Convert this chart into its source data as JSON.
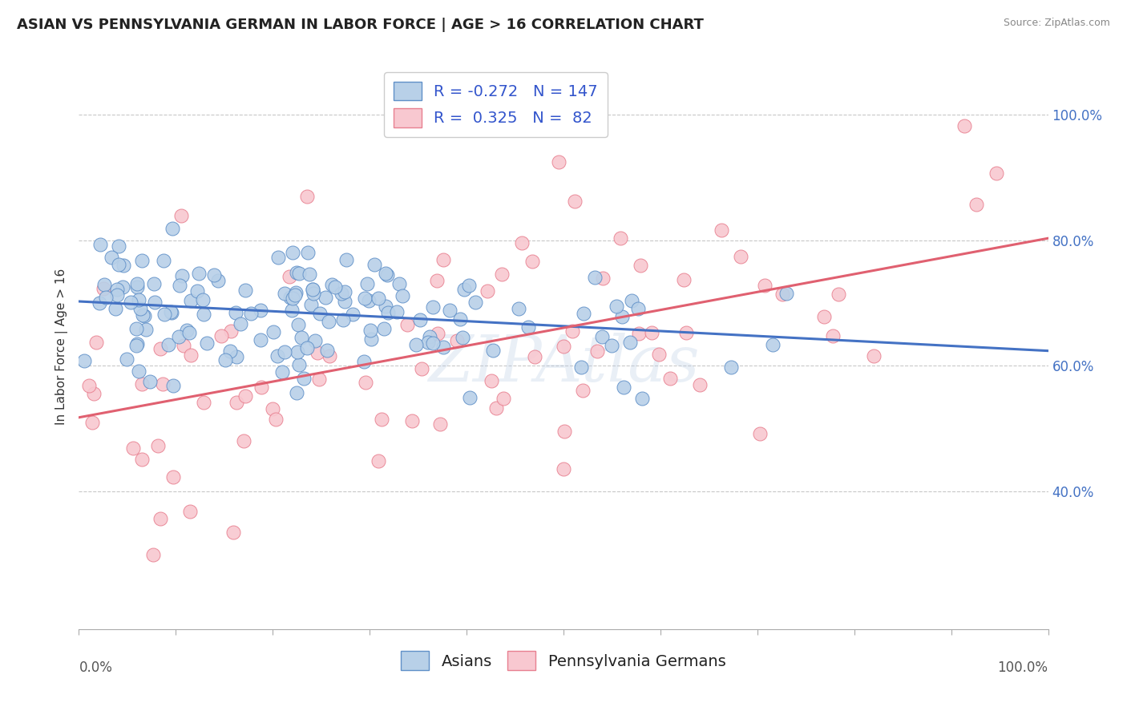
{
  "title": "ASIAN VS PENNSYLVANIA GERMAN IN LABOR FORCE | AGE > 16 CORRELATION CHART",
  "source_text": "Source: ZipAtlas.com",
  "ylabel": "In Labor Force | Age > 16",
  "x_min": 0.0,
  "x_max": 1.0,
  "y_min": 0.18,
  "y_max": 1.08,
  "y_ticks": [
    0.4,
    0.6,
    0.8,
    1.0
  ],
  "y_tick_labels": [
    "40.0%",
    "60.0%",
    "80.0%",
    "100.0%"
  ],
  "x_tick_positions": [
    0.0,
    0.1,
    0.2,
    0.3,
    0.4,
    0.5,
    0.6,
    0.7,
    0.8,
    0.9,
    1.0
  ],
  "asian_R": -0.272,
  "asian_N": 147,
  "pg_R": 0.325,
  "pg_N": 82,
  "asian_color": "#b8d0e8",
  "asian_edge_color": "#6090c8",
  "asian_line_color": "#4472c4",
  "pg_color": "#f8c8d0",
  "pg_edge_color": "#e88090",
  "pg_line_color": "#e06070",
  "background_color": "#ffffff",
  "grid_color": "#c8c8c8",
  "legend_label_asian": "Asians",
  "legend_label_pg": "Pennsylvania Germans",
  "watermark": "ZIPAtlas",
  "title_fontsize": 13,
  "axis_label_fontsize": 11,
  "tick_fontsize": 12,
  "legend_fontsize": 14
}
